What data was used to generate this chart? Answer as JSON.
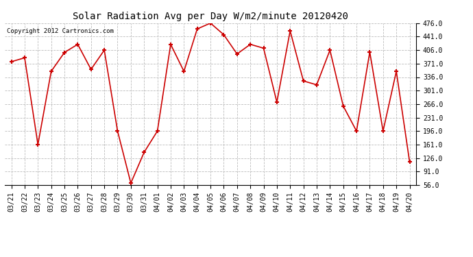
{
  "title": "Solar Radiation Avg per Day W/m2/minute 20120420",
  "copyright": "Copyright 2012 Cartronics.com",
  "labels": [
    "03/21",
    "03/22",
    "03/23",
    "03/24",
    "03/25",
    "03/26",
    "03/27",
    "03/28",
    "03/29",
    "03/30",
    "03/31",
    "04/01",
    "04/02",
    "04/03",
    "04/04",
    "04/05",
    "04/06",
    "04/07",
    "04/08",
    "04/09",
    "04/10",
    "04/11",
    "04/12",
    "04/13",
    "04/14",
    "04/15",
    "04/16",
    "04/17",
    "04/18",
    "04/19",
    "04/20"
  ],
  "values": [
    376,
    386,
    161,
    351,
    400,
    421,
    356,
    406,
    196,
    61,
    141,
    196,
    421,
    351,
    461,
    476,
    446,
    396,
    421,
    411,
    271,
    456,
    326,
    316,
    406,
    261,
    196,
    401,
    196,
    351,
    116
  ],
  "line_color": "#cc0000",
  "marker_color": "#cc0000",
  "bg_color": "#ffffff",
  "plot_bg_color": "#ffffff",
  "grid_color": "#bbbbbb",
  "yticks": [
    56.0,
    91.0,
    126.0,
    161.0,
    196.0,
    231.0,
    266.0,
    301.0,
    336.0,
    371.0,
    406.0,
    441.0,
    476.0
  ],
  "ylim": [
    56.0,
    476.0
  ],
  "title_fontsize": 10,
  "tick_fontsize": 7,
  "copyright_fontsize": 6.5
}
